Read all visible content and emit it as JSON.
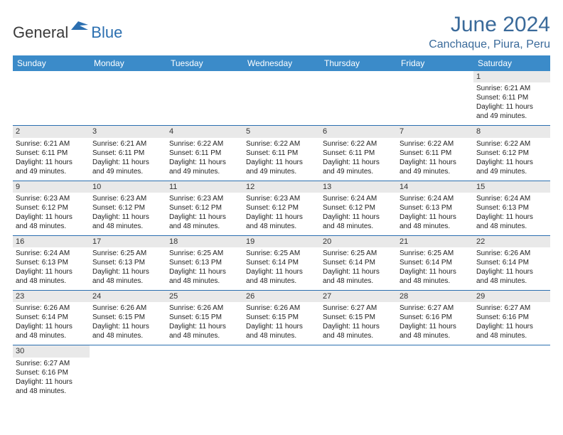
{
  "logo": {
    "dark": "General",
    "blue": "Blue"
  },
  "title": "June 2024",
  "location": "Canchaque, Piura, Peru",
  "colors": {
    "header_bg": "#3b8bc9",
    "header_text": "#ffffff",
    "title_color": "#3a6a9a",
    "row_border": "#2b6fb0",
    "daynum_bg": "#e9e9e9",
    "logo_dark": "#3a3a3a",
    "logo_blue": "#2b6fb0"
  },
  "day_headers": [
    "Sunday",
    "Monday",
    "Tuesday",
    "Wednesday",
    "Thursday",
    "Friday",
    "Saturday"
  ],
  "weeks": [
    [
      null,
      null,
      null,
      null,
      null,
      null,
      {
        "n": "1",
        "sr": "Sunrise: 6:21 AM",
        "ss": "Sunset: 6:11 PM",
        "d1": "Daylight: 11 hours",
        "d2": "and 49 minutes."
      }
    ],
    [
      {
        "n": "2",
        "sr": "Sunrise: 6:21 AM",
        "ss": "Sunset: 6:11 PM",
        "d1": "Daylight: 11 hours",
        "d2": "and 49 minutes."
      },
      {
        "n": "3",
        "sr": "Sunrise: 6:21 AM",
        "ss": "Sunset: 6:11 PM",
        "d1": "Daylight: 11 hours",
        "d2": "and 49 minutes."
      },
      {
        "n": "4",
        "sr": "Sunrise: 6:22 AM",
        "ss": "Sunset: 6:11 PM",
        "d1": "Daylight: 11 hours",
        "d2": "and 49 minutes."
      },
      {
        "n": "5",
        "sr": "Sunrise: 6:22 AM",
        "ss": "Sunset: 6:11 PM",
        "d1": "Daylight: 11 hours",
        "d2": "and 49 minutes."
      },
      {
        "n": "6",
        "sr": "Sunrise: 6:22 AM",
        "ss": "Sunset: 6:11 PM",
        "d1": "Daylight: 11 hours",
        "d2": "and 49 minutes."
      },
      {
        "n": "7",
        "sr": "Sunrise: 6:22 AM",
        "ss": "Sunset: 6:11 PM",
        "d1": "Daylight: 11 hours",
        "d2": "and 49 minutes."
      },
      {
        "n": "8",
        "sr": "Sunrise: 6:22 AM",
        "ss": "Sunset: 6:12 PM",
        "d1": "Daylight: 11 hours",
        "d2": "and 49 minutes."
      }
    ],
    [
      {
        "n": "9",
        "sr": "Sunrise: 6:23 AM",
        "ss": "Sunset: 6:12 PM",
        "d1": "Daylight: 11 hours",
        "d2": "and 48 minutes."
      },
      {
        "n": "10",
        "sr": "Sunrise: 6:23 AM",
        "ss": "Sunset: 6:12 PM",
        "d1": "Daylight: 11 hours",
        "d2": "and 48 minutes."
      },
      {
        "n": "11",
        "sr": "Sunrise: 6:23 AM",
        "ss": "Sunset: 6:12 PM",
        "d1": "Daylight: 11 hours",
        "d2": "and 48 minutes."
      },
      {
        "n": "12",
        "sr": "Sunrise: 6:23 AM",
        "ss": "Sunset: 6:12 PM",
        "d1": "Daylight: 11 hours",
        "d2": "and 48 minutes."
      },
      {
        "n": "13",
        "sr": "Sunrise: 6:24 AM",
        "ss": "Sunset: 6:12 PM",
        "d1": "Daylight: 11 hours",
        "d2": "and 48 minutes."
      },
      {
        "n": "14",
        "sr": "Sunrise: 6:24 AM",
        "ss": "Sunset: 6:13 PM",
        "d1": "Daylight: 11 hours",
        "d2": "and 48 minutes."
      },
      {
        "n": "15",
        "sr": "Sunrise: 6:24 AM",
        "ss": "Sunset: 6:13 PM",
        "d1": "Daylight: 11 hours",
        "d2": "and 48 minutes."
      }
    ],
    [
      {
        "n": "16",
        "sr": "Sunrise: 6:24 AM",
        "ss": "Sunset: 6:13 PM",
        "d1": "Daylight: 11 hours",
        "d2": "and 48 minutes."
      },
      {
        "n": "17",
        "sr": "Sunrise: 6:25 AM",
        "ss": "Sunset: 6:13 PM",
        "d1": "Daylight: 11 hours",
        "d2": "and 48 minutes."
      },
      {
        "n": "18",
        "sr": "Sunrise: 6:25 AM",
        "ss": "Sunset: 6:13 PM",
        "d1": "Daylight: 11 hours",
        "d2": "and 48 minutes."
      },
      {
        "n": "19",
        "sr": "Sunrise: 6:25 AM",
        "ss": "Sunset: 6:14 PM",
        "d1": "Daylight: 11 hours",
        "d2": "and 48 minutes."
      },
      {
        "n": "20",
        "sr": "Sunrise: 6:25 AM",
        "ss": "Sunset: 6:14 PM",
        "d1": "Daylight: 11 hours",
        "d2": "and 48 minutes."
      },
      {
        "n": "21",
        "sr": "Sunrise: 6:25 AM",
        "ss": "Sunset: 6:14 PM",
        "d1": "Daylight: 11 hours",
        "d2": "and 48 minutes."
      },
      {
        "n": "22",
        "sr": "Sunrise: 6:26 AM",
        "ss": "Sunset: 6:14 PM",
        "d1": "Daylight: 11 hours",
        "d2": "and 48 minutes."
      }
    ],
    [
      {
        "n": "23",
        "sr": "Sunrise: 6:26 AM",
        "ss": "Sunset: 6:14 PM",
        "d1": "Daylight: 11 hours",
        "d2": "and 48 minutes."
      },
      {
        "n": "24",
        "sr": "Sunrise: 6:26 AM",
        "ss": "Sunset: 6:15 PM",
        "d1": "Daylight: 11 hours",
        "d2": "and 48 minutes."
      },
      {
        "n": "25",
        "sr": "Sunrise: 6:26 AM",
        "ss": "Sunset: 6:15 PM",
        "d1": "Daylight: 11 hours",
        "d2": "and 48 minutes."
      },
      {
        "n": "26",
        "sr": "Sunrise: 6:26 AM",
        "ss": "Sunset: 6:15 PM",
        "d1": "Daylight: 11 hours",
        "d2": "and 48 minutes."
      },
      {
        "n": "27",
        "sr": "Sunrise: 6:27 AM",
        "ss": "Sunset: 6:15 PM",
        "d1": "Daylight: 11 hours",
        "d2": "and 48 minutes."
      },
      {
        "n": "28",
        "sr": "Sunrise: 6:27 AM",
        "ss": "Sunset: 6:16 PM",
        "d1": "Daylight: 11 hours",
        "d2": "and 48 minutes."
      },
      {
        "n": "29",
        "sr": "Sunrise: 6:27 AM",
        "ss": "Sunset: 6:16 PM",
        "d1": "Daylight: 11 hours",
        "d2": "and 48 minutes."
      }
    ],
    [
      {
        "n": "30",
        "sr": "Sunrise: 6:27 AM",
        "ss": "Sunset: 6:16 PM",
        "d1": "Daylight: 11 hours",
        "d2": "and 48 minutes."
      },
      null,
      null,
      null,
      null,
      null,
      null
    ]
  ]
}
